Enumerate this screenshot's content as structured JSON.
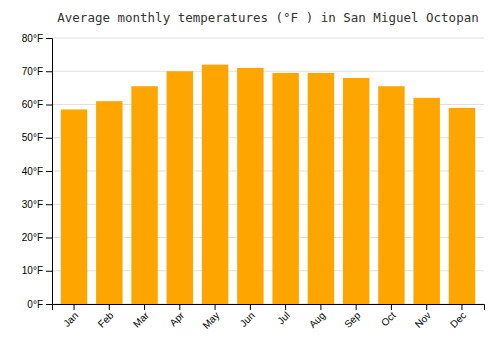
{
  "chart_data": {
    "type": "bar",
    "title": "Average monthly temperatures (°F ) in San Miguel Octopan",
    "categories": [
      "Jan",
      "Feb",
      "Mar",
      "Apr",
      "May",
      "Jun",
      "Jul",
      "Aug",
      "Sep",
      "Oct",
      "Nov",
      "Dec"
    ],
    "values": [
      58.5,
      61.0,
      65.5,
      70.0,
      72.0,
      71.0,
      69.5,
      69.5,
      68.0,
      65.5,
      62.0,
      59.0
    ],
    "color": "#FFA500",
    "ylim": [
      0,
      80
    ],
    "yticks": [
      {
        "value": 0,
        "label": "0°F"
      },
      {
        "value": 10,
        "label": "10°F"
      },
      {
        "value": 20,
        "label": "20°F"
      },
      {
        "value": 30,
        "label": "30°F"
      },
      {
        "value": 40,
        "label": "40°F"
      },
      {
        "value": 50,
        "label": "50°F"
      },
      {
        "value": 60,
        "label": "60°F"
      },
      {
        "value": 70,
        "label": "70°F"
      },
      {
        "value": 80,
        "label": "80°F"
      }
    ],
    "grid": true
  }
}
